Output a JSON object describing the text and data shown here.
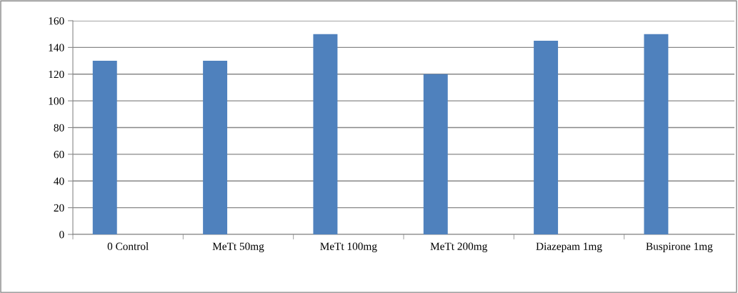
{
  "chart_data": {
    "type": "bar",
    "categories": [
      "0 Control",
      "MeTt 50mg",
      "MeTt 100mg",
      "MeTt 200mg",
      "Diazepam 1mg",
      "Buspirone 1mg"
    ],
    "values": [
      130,
      130,
      150,
      120,
      145,
      150
    ],
    "color": "#4f81bd",
    "ylim": [
      0,
      160
    ],
    "yticks": [
      0,
      20,
      40,
      60,
      80,
      100,
      120,
      140,
      160
    ],
    "grid": "y",
    "legend": false
  }
}
